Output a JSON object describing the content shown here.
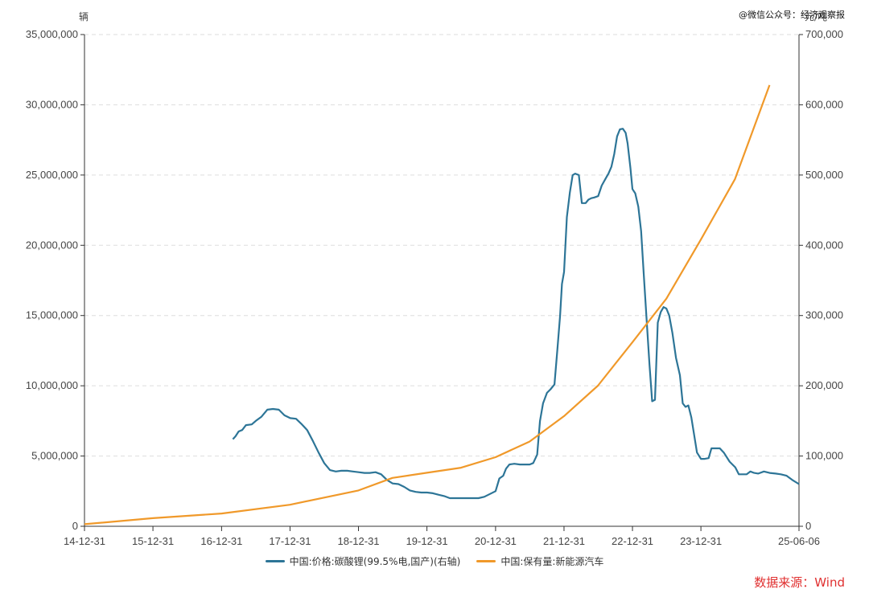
{
  "watermark": "@微信公众号：经济观察报",
  "source": "数据来源：Wind",
  "colors": {
    "price": "#2d7597",
    "stock": "#f0992a",
    "grid": "#dddddd",
    "axis": "#333333",
    "source": "#e03030"
  },
  "chart_data": {
    "type": "line",
    "left_unit": "辆",
    "right_unit": "元/吨",
    "x_ticks": [
      "14-12-31",
      "15-12-31",
      "16-12-31",
      "17-12-31",
      "18-12-31",
      "19-12-31",
      "20-12-31",
      "21-12-31",
      "22-12-31",
      "23-12-31",
      "25-06-06"
    ],
    "x_range": [
      "2014-12-31",
      "2025-06-06"
    ],
    "left_axis": {
      "range": [
        0,
        35000000
      ],
      "ticks": [
        "0",
        "5,000,000",
        "10,000,000",
        "15,000,000",
        "20,000,000",
        "25,000,000",
        "30,000,000",
        "35,000,000"
      ]
    },
    "right_axis": {
      "range": [
        0,
        700000
      ],
      "ticks": [
        "0",
        "100,000",
        "200,000",
        "300,000",
        "400,000",
        "500,000",
        "600,000",
        "700,000"
      ]
    },
    "grid": true,
    "legend_position": "bottom",
    "series": [
      {
        "name": "中国:价格:碳酸锂(99.5%电,国产)(右轴)",
        "axis": "right",
        "points": [
          [
            "2017-03-01",
            124000
          ],
          [
            "2017-03-15",
            128000
          ],
          [
            "2017-04-01",
            135000
          ],
          [
            "2017-04-20",
            137000
          ],
          [
            "2017-05-10",
            144000
          ],
          [
            "2017-06-10",
            145000
          ],
          [
            "2017-07-01",
            150000
          ],
          [
            "2017-08-01",
            156000
          ],
          [
            "2017-09-01",
            166000
          ],
          [
            "2017-10-01",
            167000
          ],
          [
            "2017-11-01",
            166000
          ],
          [
            "2017-12-01",
            158000
          ],
          [
            "2018-01-01",
            154000
          ],
          [
            "2018-02-01",
            153000
          ],
          [
            "2018-03-01",
            146000
          ],
          [
            "2018-04-01",
            137000
          ],
          [
            "2018-05-01",
            122000
          ],
          [
            "2018-06-01",
            105000
          ],
          [
            "2018-07-01",
            90000
          ],
          [
            "2018-08-01",
            80000
          ],
          [
            "2018-09-01",
            78000
          ],
          [
            "2018-10-01",
            79000
          ],
          [
            "2018-11-01",
            79000
          ],
          [
            "2018-12-01",
            78000
          ],
          [
            "2019-01-01",
            77000
          ],
          [
            "2019-02-01",
            76000
          ],
          [
            "2019-03-01",
            76000
          ],
          [
            "2019-04-01",
            77000
          ],
          [
            "2019-05-01",
            74000
          ],
          [
            "2019-06-01",
            66000
          ],
          [
            "2019-07-01",
            61000
          ],
          [
            "2019-08-01",
            60000
          ],
          [
            "2019-09-01",
            56000
          ],
          [
            "2019-10-01",
            51000
          ],
          [
            "2019-11-01",
            49000
          ],
          [
            "2019-12-01",
            48000
          ],
          [
            "2020-01-01",
            48000
          ],
          [
            "2020-02-01",
            47000
          ],
          [
            "2020-03-01",
            45000
          ],
          [
            "2020-04-01",
            43000
          ],
          [
            "2020-05-01",
            40000
          ],
          [
            "2020-06-01",
            40000
          ],
          [
            "2020-07-01",
            40000
          ],
          [
            "2020-08-01",
            40000
          ],
          [
            "2020-09-01",
            40000
          ],
          [
            "2020-10-01",
            40000
          ],
          [
            "2020-11-01",
            42000
          ],
          [
            "2020-12-01",
            46000
          ],
          [
            "2020-12-31",
            50000
          ],
          [
            "2021-01-20",
            68000
          ],
          [
            "2021-02-10",
            72000
          ],
          [
            "2021-02-25",
            82000
          ],
          [
            "2021-03-15",
            88000
          ],
          [
            "2021-04-10",
            89000
          ],
          [
            "2021-05-10",
            88000
          ],
          [
            "2021-06-10",
            88000
          ],
          [
            "2021-07-01",
            88000
          ],
          [
            "2021-07-20",
            90000
          ],
          [
            "2021-08-10",
            102000
          ],
          [
            "2021-08-25",
            150000
          ],
          [
            "2021-09-10",
            175000
          ],
          [
            "2021-10-01",
            190000
          ],
          [
            "2021-10-20",
            195000
          ],
          [
            "2021-11-10",
            202000
          ],
          [
            "2021-11-25",
            250000
          ],
          [
            "2021-12-10",
            300000
          ],
          [
            "2021-12-20",
            345000
          ],
          [
            "2021-12-31",
            362000
          ],
          [
            "2022-01-15",
            440000
          ],
          [
            "2022-01-31",
            475000
          ],
          [
            "2022-02-15",
            500000
          ],
          [
            "2022-03-01",
            502000
          ],
          [
            "2022-03-20",
            500000
          ],
          [
            "2022-04-05",
            460000
          ],
          [
            "2022-04-25",
            460000
          ],
          [
            "2022-05-10",
            465000
          ],
          [
            "2022-05-25",
            467000
          ],
          [
            "2022-06-10",
            468000
          ],
          [
            "2022-07-01",
            470000
          ],
          [
            "2022-07-20",
            485000
          ],
          [
            "2022-08-10",
            495000
          ],
          [
            "2022-08-25",
            502000
          ],
          [
            "2022-09-10",
            512000
          ],
          [
            "2022-09-25",
            530000
          ],
          [
            "2022-10-10",
            555000
          ],
          [
            "2022-10-25",
            565000
          ],
          [
            "2022-11-10",
            566000
          ],
          [
            "2022-11-25",
            560000
          ],
          [
            "2022-12-05",
            545000
          ],
          [
            "2022-12-20",
            510000
          ],
          [
            "2022-12-31",
            480000
          ],
          [
            "2023-01-15",
            474000
          ],
          [
            "2023-01-31",
            455000
          ],
          [
            "2023-02-15",
            420000
          ],
          [
            "2023-03-01",
            360000
          ],
          [
            "2023-03-15",
            300000
          ],
          [
            "2023-04-01",
            230000
          ],
          [
            "2023-04-15",
            178000
          ],
          [
            "2023-04-30",
            180000
          ],
          [
            "2023-05-15",
            290000
          ],
          [
            "2023-05-31",
            305000
          ],
          [
            "2023-06-15",
            312000
          ],
          [
            "2023-06-30",
            310000
          ],
          [
            "2023-07-15",
            300000
          ],
          [
            "2023-08-01",
            275000
          ],
          [
            "2023-08-20",
            240000
          ],
          [
            "2023-09-10",
            215000
          ],
          [
            "2023-09-25",
            175000
          ],
          [
            "2023-10-10",
            170000
          ],
          [
            "2023-10-25",
            172000
          ],
          [
            "2023-11-10",
            155000
          ],
          [
            "2023-11-25",
            130000
          ],
          [
            "2023-12-10",
            105000
          ],
          [
            "2023-12-31",
            96000
          ],
          [
            "2024-01-20",
            96000
          ],
          [
            "2024-02-10",
            97000
          ],
          [
            "2024-02-25",
            111000
          ],
          [
            "2024-03-15",
            111000
          ],
          [
            "2024-04-10",
            111000
          ],
          [
            "2024-05-01",
            105000
          ],
          [
            "2024-06-01",
            92000
          ],
          [
            "2024-07-01",
            84000
          ],
          [
            "2024-07-20",
            74000
          ],
          [
            "2024-08-10",
            74000
          ],
          [
            "2024-08-31",
            74000
          ],
          [
            "2024-09-20",
            78000
          ],
          [
            "2024-10-10",
            76000
          ],
          [
            "2024-11-01",
            75000
          ],
          [
            "2024-12-01",
            78000
          ],
          [
            "2025-01-01",
            76000
          ],
          [
            "2025-02-01",
            75000
          ],
          [
            "2025-03-01",
            74000
          ],
          [
            "2025-04-01",
            72000
          ],
          [
            "2025-05-01",
            66000
          ],
          [
            "2025-06-06",
            60000
          ]
        ]
      },
      {
        "name": "中国:保有量:新能源汽车",
        "axis": "left",
        "points": [
          [
            "2014-12-31",
            150000
          ],
          [
            "2015-12-31",
            580000
          ],
          [
            "2016-12-31",
            910000
          ],
          [
            "2017-12-31",
            1530000
          ],
          [
            "2018-12-31",
            2550000
          ],
          [
            "2019-06-30",
            3440000
          ],
          [
            "2019-12-31",
            3810000
          ],
          [
            "2020-06-30",
            4170000
          ],
          [
            "2020-12-31",
            4920000
          ],
          [
            "2021-06-30",
            6030000
          ],
          [
            "2021-12-31",
            7840000
          ],
          [
            "2022-06-30",
            10010000
          ],
          [
            "2022-12-31",
            13100000
          ],
          [
            "2023-06-30",
            16200000
          ],
          [
            "2023-12-31",
            20410000
          ],
          [
            "2024-06-30",
            24720000
          ],
          [
            "2024-12-31",
            31400000
          ]
        ]
      }
    ]
  }
}
